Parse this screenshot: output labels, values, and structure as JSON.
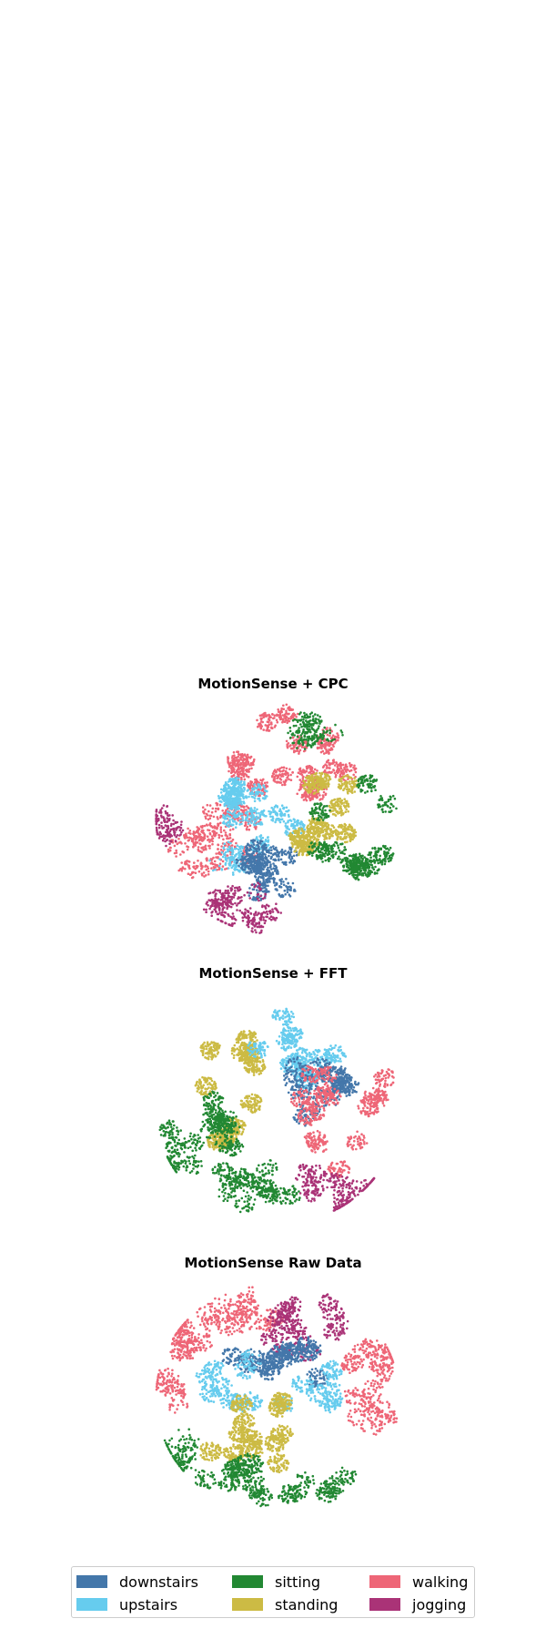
{
  "chart_data": [
    {
      "type": "scatter",
      "title": "MotionSense + CPC",
      "clusters": [
        {
          "class": "walking",
          "cx": 0.12,
          "cy": -0.55,
          "rx": 0.55,
          "ry": 0.38,
          "weight": 1.4
        },
        {
          "class": "walking",
          "cx": -0.55,
          "cy": 0.15,
          "rx": 0.35,
          "ry": 0.35,
          "weight": 0.8
        },
        {
          "class": "upstairs",
          "cx": -0.15,
          "cy": -0.05,
          "rx": 0.38,
          "ry": 0.28,
          "weight": 1.0
        },
        {
          "class": "upstairs",
          "cx": -0.4,
          "cy": 0.35,
          "rx": 0.12,
          "ry": 0.1,
          "weight": 0.2
        },
        {
          "class": "downstairs",
          "cx": -0.08,
          "cy": 0.38,
          "rx": 0.2,
          "ry": 0.33,
          "weight": 0.9
        },
        {
          "class": "standing",
          "cx": 0.38,
          "cy": 0.0,
          "rx": 0.28,
          "ry": 0.48,
          "weight": 1.3
        },
        {
          "class": "sitting",
          "cx": 0.62,
          "cy": 0.12,
          "rx": 0.32,
          "ry": 0.55,
          "weight": 1.0
        },
        {
          "class": "sitting",
          "cx": 0.35,
          "cy": -0.75,
          "rx": 0.25,
          "ry": 0.12,
          "weight": 0.3
        },
        {
          "class": "jogging",
          "cx": -0.3,
          "cy": 0.78,
          "rx": 0.3,
          "ry": 0.18,
          "weight": 0.5
        },
        {
          "class": "jogging",
          "cx": -0.92,
          "cy": 0.02,
          "rx": 0.08,
          "ry": 0.15,
          "weight": 0.2
        }
      ]
    },
    {
      "type": "scatter",
      "title": "MotionSense + FFT",
      "clusters": [
        {
          "class": "standing",
          "cx": -0.35,
          "cy": -0.15,
          "rx": 0.25,
          "ry": 0.6,
          "weight": 1.3
        },
        {
          "class": "sitting",
          "cx": -0.6,
          "cy": 0.3,
          "rx": 0.3,
          "ry": 0.4,
          "weight": 1.0
        },
        {
          "class": "sitting",
          "cx": -0.15,
          "cy": 0.68,
          "rx": 0.3,
          "ry": 0.18,
          "weight": 0.6
        },
        {
          "class": "upstairs",
          "cx": 0.1,
          "cy": -0.5,
          "rx": 0.4,
          "ry": 0.3,
          "weight": 1.0
        },
        {
          "class": "downstairs",
          "cx": 0.3,
          "cy": -0.15,
          "rx": 0.3,
          "ry": 0.25,
          "weight": 0.9
        },
        {
          "class": "walking",
          "cx": 0.55,
          "cy": 0.0,
          "rx": 0.38,
          "ry": 0.55,
          "weight": 1.1
        },
        {
          "class": "jogging",
          "cx": 0.55,
          "cy": 0.68,
          "rx": 0.38,
          "ry": 0.22,
          "weight": 0.5
        }
      ]
    },
    {
      "type": "scatter",
      "title": "MotionSense Raw Data",
      "clusters": [
        {
          "class": "walking",
          "cx": -0.78,
          "cy": -0.3,
          "rx": 0.2,
          "ry": 0.4,
          "weight": 0.6
        },
        {
          "class": "walking",
          "cx": -0.3,
          "cy": -0.72,
          "rx": 0.3,
          "ry": 0.2,
          "weight": 0.5
        },
        {
          "class": "walking",
          "cx": 0.78,
          "cy": -0.05,
          "rx": 0.22,
          "ry": 0.45,
          "weight": 0.7
        },
        {
          "class": "jogging",
          "cx": 0.3,
          "cy": -0.55,
          "rx": 0.35,
          "ry": 0.3,
          "weight": 0.7
        },
        {
          "class": "downstairs",
          "cx": 0.05,
          "cy": -0.28,
          "rx": 0.55,
          "ry": 0.2,
          "weight": 1.0
        },
        {
          "class": "upstairs",
          "cx": -0.05,
          "cy": -0.1,
          "rx": 0.6,
          "ry": 0.25,
          "weight": 1.0
        },
        {
          "class": "standing",
          "cx": -0.15,
          "cy": 0.3,
          "rx": 0.45,
          "ry": 0.38,
          "weight": 1.3
        },
        {
          "class": "sitting",
          "cx": 0.05,
          "cy": 0.7,
          "rx": 0.65,
          "ry": 0.18,
          "weight": 1.0
        },
        {
          "class": "sitting",
          "cx": -0.82,
          "cy": 0.48,
          "rx": 0.12,
          "ry": 0.2,
          "weight": 0.2
        }
      ]
    }
  ],
  "legend": {
    "placement": "bottom",
    "items": [
      {
        "label": "downstairs",
        "color": "#4477aa"
      },
      {
        "label": "upstairs",
        "color": "#66ccee"
      },
      {
        "label": "sitting",
        "color": "#228833"
      },
      {
        "label": "standing",
        "color": "#ccbb44"
      },
      {
        "label": "walking",
        "color": "#ee6677"
      },
      {
        "label": "jogging",
        "color": "#aa3377"
      }
    ]
  }
}
